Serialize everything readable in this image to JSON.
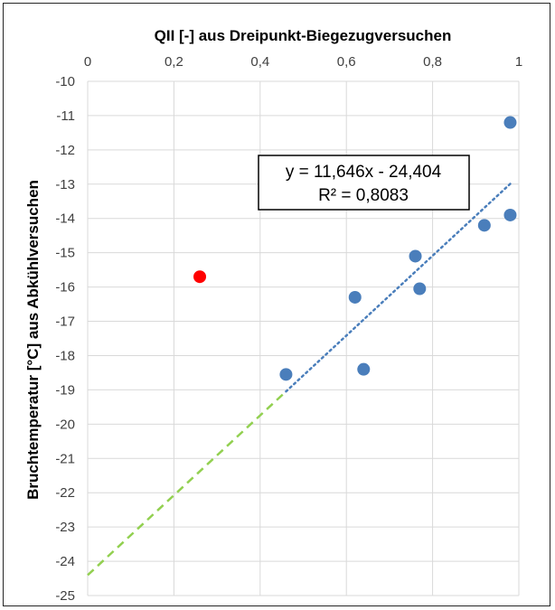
{
  "chart_data": {
    "type": "scatter",
    "title": "",
    "xlabel": "QII [-] aus Dreipunkt-Biegezugversuchen",
    "ylabel": "Bruchtemperatur [°C] aus Abkühlversuchen",
    "xlim": [
      0,
      1
    ],
    "ylim": [
      -25,
      -10
    ],
    "x_axis_position": "top",
    "x_ticks": [
      "0",
      "0,2",
      "0,4",
      "0,6",
      "0,8",
      "1"
    ],
    "y_ticks": [
      "-10",
      "-11",
      "-12",
      "-13",
      "-14",
      "-15",
      "-16",
      "-17",
      "-18",
      "-19",
      "-20",
      "-21",
      "-22",
      "-23",
      "-24",
      "-25"
    ],
    "grid": true,
    "series": [
      {
        "color": "#4a7ebb",
        "points": [
          {
            "x": 0.46,
            "y": -18.55
          },
          {
            "x": 0.62,
            "y": -16.3
          },
          {
            "x": 0.64,
            "y": -18.4
          },
          {
            "x": 0.76,
            "y": -15.1
          },
          {
            "x": 0.77,
            "y": -16.05
          },
          {
            "x": 0.92,
            "y": -14.2
          },
          {
            "x": 0.98,
            "y": -13.9
          },
          {
            "x": 0.98,
            "y": -11.2
          }
        ]
      },
      {
        "color": "#ff0000",
        "points": [
          {
            "x": 0.26,
            "y": -15.7
          }
        ]
      }
    ],
    "trendline": {
      "slope": 11.646,
      "intercept": -24.404,
      "x_range": [
        0.46,
        0.98
      ],
      "color": "#4a7ebb",
      "style": "dotted"
    },
    "extension": {
      "x_range": [
        0,
        0.46
      ],
      "color": "#92d050",
      "style": "dashed"
    },
    "annotation": {
      "equation": "y = 11,646x - 24,404",
      "r2": "R² = 0,8083"
    }
  }
}
